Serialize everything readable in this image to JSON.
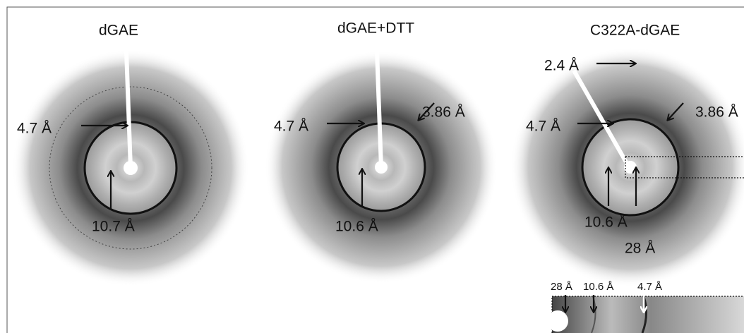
{
  "panels": [
    {
      "title": "dGAE",
      "labels": [
        "4.7 Å",
        "10.7 Å"
      ]
    },
    {
      "title": "dGAE+DTT",
      "labels": [
        "4.7 Å",
        "3.86 Å",
        "10.6 Å"
      ]
    },
    {
      "title": "C322A-dGAE",
      "labels": [
        "2.4 Å",
        "4.7 Å",
        "3.86 Å",
        "10.6 Å",
        "28 Å"
      ]
    }
  ],
  "inset": {
    "labels": [
      "28 Å",
      "10.6 Å",
      "4.7 Å"
    ]
  }
}
